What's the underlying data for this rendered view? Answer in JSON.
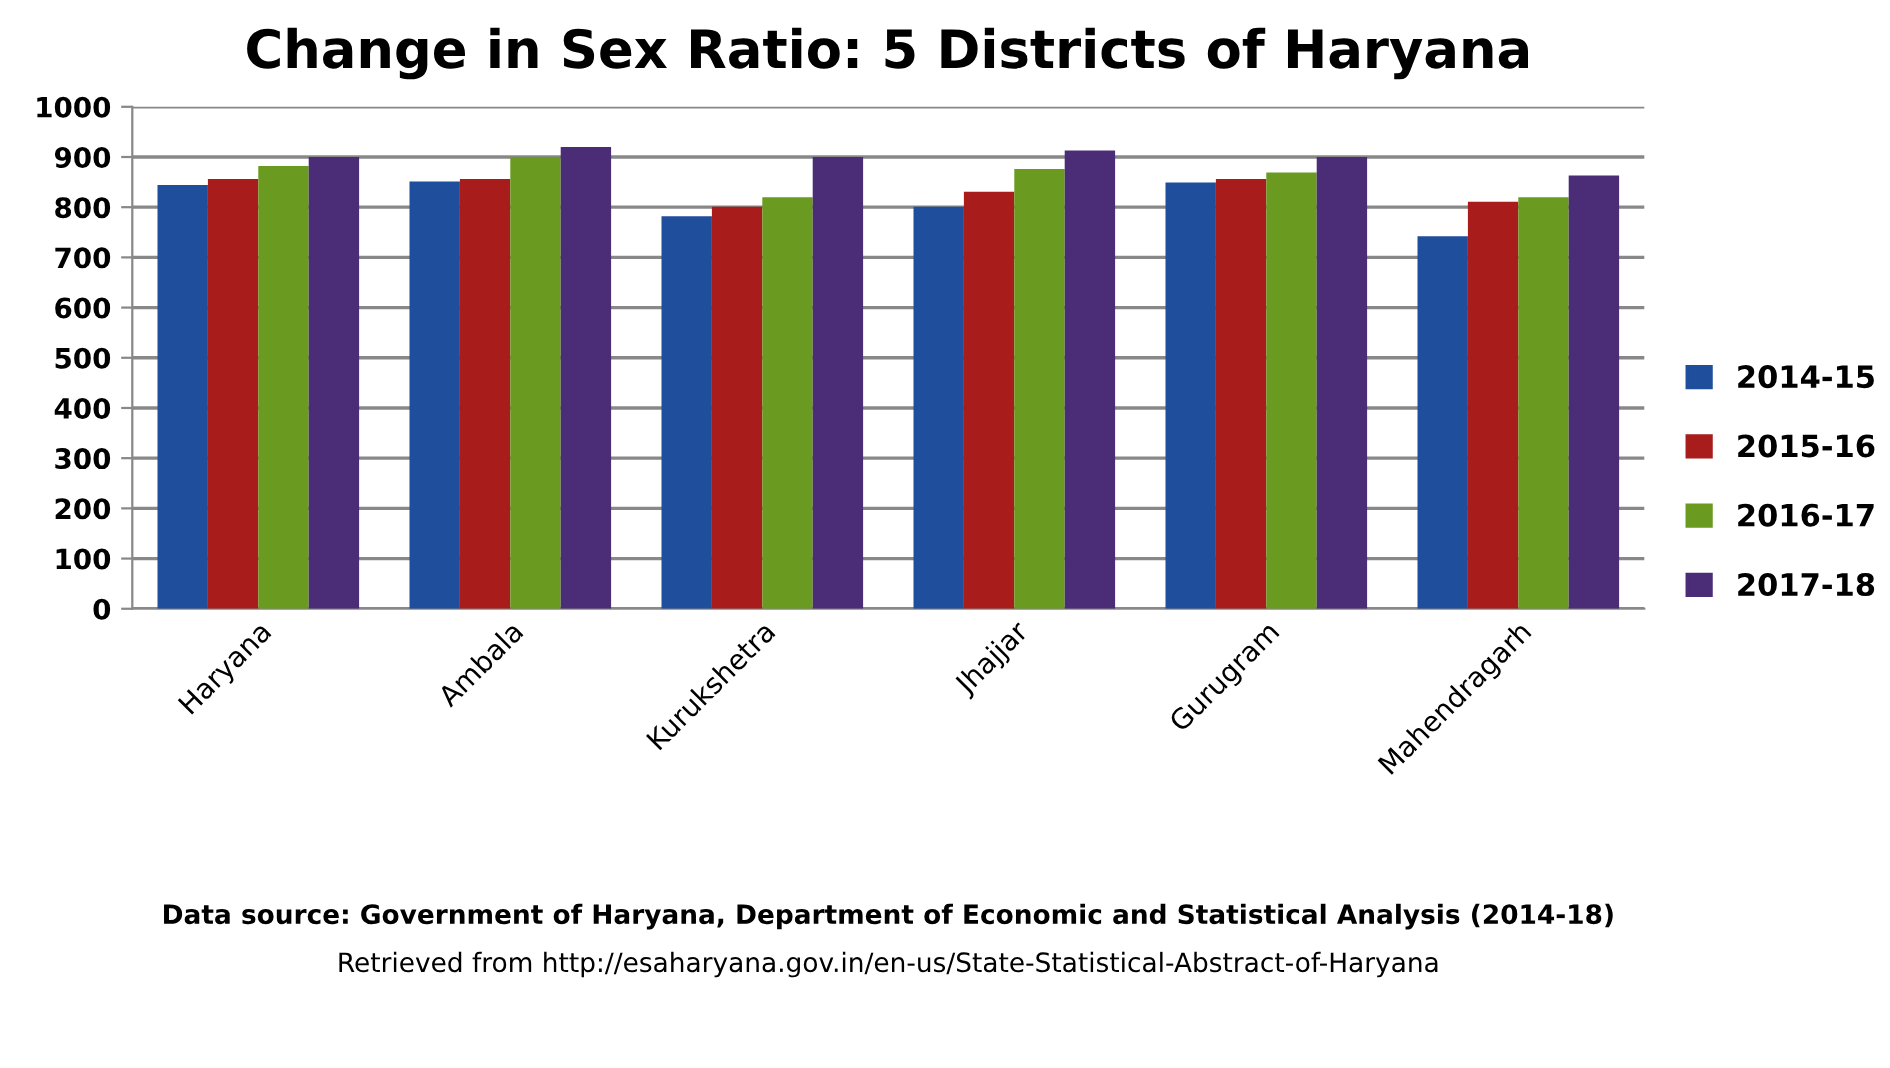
{
  "chart_data": {
    "type": "bar",
    "title": "Change in Sex Ratio: 5 Districts of Haryana",
    "categories": [
      "Haryana",
      "Ambala",
      "Kurukshetra",
      "Jhajjar",
      "Gurugram",
      "Mahendragarh"
    ],
    "series": [
      {
        "name": "2014-15",
        "color": "#1f4e9c",
        "values": [
          844,
          851,
          782,
          801,
          849,
          742
        ]
      },
      {
        "name": "2015-16",
        "color": "#a81c1c",
        "values": [
          856,
          856,
          801,
          831,
          856,
          811
        ]
      },
      {
        "name": "2016-17",
        "color": "#6a9a1f",
        "values": [
          882,
          900,
          820,
          876,
          869,
          820
        ]
      },
      {
        "name": "2017-18",
        "color": "#4b2c77",
        "values": [
          900,
          920,
          900,
          913,
          900,
          863
        ]
      }
    ],
    "ylim": [
      0,
      1000
    ],
    "yticks": [
      0,
      100,
      200,
      300,
      400,
      500,
      600,
      700,
      800,
      900,
      1000
    ],
    "grid": "y",
    "legend": "right",
    "annotations": [
      "Data source: Government of Haryana, Department of Economic and Statistical Analysis (2014-18)",
      "Retrieved from http://esaharyana.gov.in/en-us/State-Statistical-Abstract-of-Haryana"
    ]
  }
}
